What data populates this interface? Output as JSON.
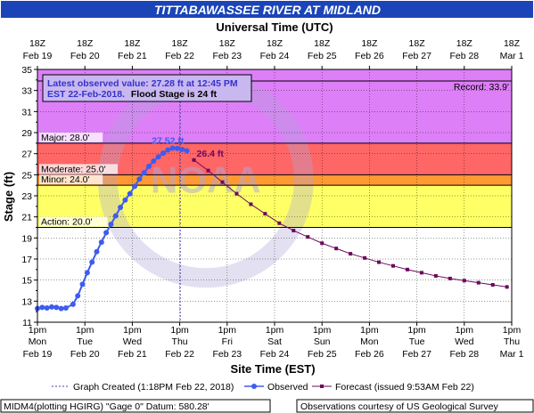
{
  "title": "TITTABAWASSEE RIVER AT MIDLAND",
  "top_axis_title": "Universal Time (UTC)",
  "top_ticks": [
    {
      "l1": "18Z",
      "l2": "Feb 19"
    },
    {
      "l1": "18Z",
      "l2": "Feb 20"
    },
    {
      "l1": "18Z",
      "l2": "Feb 21"
    },
    {
      "l1": "18Z",
      "l2": "Feb 22"
    },
    {
      "l1": "18Z",
      "l2": "Feb 23"
    },
    {
      "l1": "18Z",
      "l2": "Feb 24"
    },
    {
      "l1": "18Z",
      "l2": "Feb 25"
    },
    {
      "l1": "18Z",
      "l2": "Feb 26"
    },
    {
      "l1": "18Z",
      "l2": "Feb 27"
    },
    {
      "l1": "18Z",
      "l2": "Feb 28"
    },
    {
      "l1": "18Z",
      "l2": "Mar 1"
    }
  ],
  "bottom_ticks": [
    {
      "l1": "1pm",
      "l2": "Mon",
      "l3": "Feb 19"
    },
    {
      "l1": "1pm",
      "l2": "Tue",
      "l3": "Feb 20"
    },
    {
      "l1": "1pm",
      "l2": "Wed",
      "l3": "Feb 21"
    },
    {
      "l1": "1pm",
      "l2": "Thu",
      "l3": "Feb 22"
    },
    {
      "l1": "1pm",
      "l2": "Fri",
      "l3": "Feb 23"
    },
    {
      "l1": "1pm",
      "l2": "Sat",
      "l3": "Feb 24"
    },
    {
      "l1": "1pm",
      "l2": "Sun",
      "l3": "Feb 25"
    },
    {
      "l1": "1pm",
      "l2": "Mon",
      "l3": "Feb 26"
    },
    {
      "l1": "1pm",
      "l2": "Tue",
      "l3": "Feb 27"
    },
    {
      "l1": "1pm",
      "l2": "Wed",
      "l3": "Feb 28"
    },
    {
      "l1": "1pm",
      "l2": "Thu",
      "l3": "Mar 1"
    }
  ],
  "colors": {
    "title_bg": "#1a44b8",
    "title_fg": "#ffffff",
    "record": "#dd7ff7",
    "major": "#cc44cc",
    "moderate": "#ff6666",
    "minor": "#ff9933",
    "action": "#ffff66",
    "observed": "#3d5cf0",
    "forecast": "#6b0a5c",
    "box_bg": "#c9b7f0",
    "box_text": "#3333cc",
    "watermark": "#b0a6d8"
  },
  "info_box": {
    "line1": "Latest observed value: 27.28 ft at 12:45 PM",
    "line2a": "EST 22-Feb-2018.",
    "line2b": "Flood Stage is 24 ft"
  },
  "bottom_bar": {
    "left": "MIDM4(plotting HGIRG) \"Gage 0\" Datum: 580.28'",
    "right": "Observations courtesy of US Geological Survey"
  },
  "legend": {
    "created": "Graph Created (1:18PM Feb 22, 2018)",
    "observed": "Observed",
    "forecast": "Forecast (issued 9:53AM Feb 22)"
  },
  "chart_data": {
    "type": "line",
    "title": "TITTABAWASSEE RIVER AT MIDLAND",
    "xlabel": "Site Time (EST)",
    "ylabel": "Stage (ft)",
    "x2label": "Universal Time (UTC)",
    "x_range_days_from_feb19_1pm_EST": [
      0,
      10
    ],
    "ylim": [
      11,
      35
    ],
    "yticks": [
      11,
      13,
      15,
      17,
      19,
      21,
      23,
      25,
      27,
      29,
      31,
      33,
      35
    ],
    "grid": true,
    "thresholds": [
      {
        "name": "Record",
        "value": 33.9,
        "label": "Record: 33.9'"
      },
      {
        "name": "Major",
        "value": 28.0,
        "label": "Major: 28.0'"
      },
      {
        "name": "Moderate",
        "value": 25.0,
        "label": "Moderate: 25.0'"
      },
      {
        "name": "Minor",
        "value": 24.0,
        "label": "Minor: 24.0'"
      },
      {
        "name": "Action",
        "value": 20.0,
        "label": "Action: 20.0'"
      }
    ],
    "graph_created_day": 3.01,
    "annotations": [
      {
        "text": "27.52 ft",
        "x": 2.75,
        "y": 27.52
      },
      {
        "text": "26.4 ft",
        "x": 3.3,
        "y": 26.4
      }
    ],
    "series": [
      {
        "name": "Observed",
        "values": [
          [
            0.0,
            12.3
          ],
          [
            0.1,
            12.4
          ],
          [
            0.2,
            12.35
          ],
          [
            0.3,
            12.45
          ],
          [
            0.4,
            12.4
          ],
          [
            0.5,
            12.3
          ],
          [
            0.6,
            12.35
          ],
          [
            0.75,
            12.7
          ],
          [
            0.85,
            13.5
          ],
          [
            0.95,
            14.6
          ],
          [
            1.05,
            15.7
          ],
          [
            1.15,
            16.7
          ],
          [
            1.25,
            17.7
          ],
          [
            1.35,
            18.6
          ],
          [
            1.45,
            19.5
          ],
          [
            1.55,
            20.3
          ],
          [
            1.65,
            21.1
          ],
          [
            1.75,
            21.9
          ],
          [
            1.85,
            22.6
          ],
          [
            1.95,
            23.2
          ],
          [
            2.05,
            23.9
          ],
          [
            2.15,
            24.6
          ],
          [
            2.25,
            25.2
          ],
          [
            2.35,
            25.8
          ],
          [
            2.45,
            26.3
          ],
          [
            2.55,
            26.7
          ],
          [
            2.65,
            27.05
          ],
          [
            2.75,
            27.35
          ],
          [
            2.85,
            27.52
          ],
          [
            2.95,
            27.5
          ],
          [
            3.05,
            27.4
          ],
          [
            3.15,
            27.28
          ]
        ]
      },
      {
        "name": "Forecast (issued 9:53AM Feb 22)",
        "values": [
          [
            3.3,
            26.4
          ],
          [
            3.6,
            25.4
          ],
          [
            3.9,
            24.3
          ],
          [
            4.2,
            23.2
          ],
          [
            4.5,
            22.2
          ],
          [
            4.8,
            21.3
          ],
          [
            5.1,
            20.4
          ],
          [
            5.4,
            19.7
          ],
          [
            5.7,
            19.1
          ],
          [
            6.0,
            18.5
          ],
          [
            6.3,
            18.0
          ],
          [
            6.6,
            17.5
          ],
          [
            6.9,
            17.1
          ],
          [
            7.2,
            16.7
          ],
          [
            7.5,
            16.35
          ],
          [
            7.8,
            16.0
          ],
          [
            8.1,
            15.7
          ],
          [
            8.4,
            15.4
          ],
          [
            8.7,
            15.15
          ],
          [
            9.0,
            14.95
          ],
          [
            9.3,
            14.75
          ],
          [
            9.6,
            14.55
          ],
          [
            9.9,
            14.35
          ]
        ]
      }
    ]
  },
  "watermark": {
    "agency": "NOAA"
  }
}
